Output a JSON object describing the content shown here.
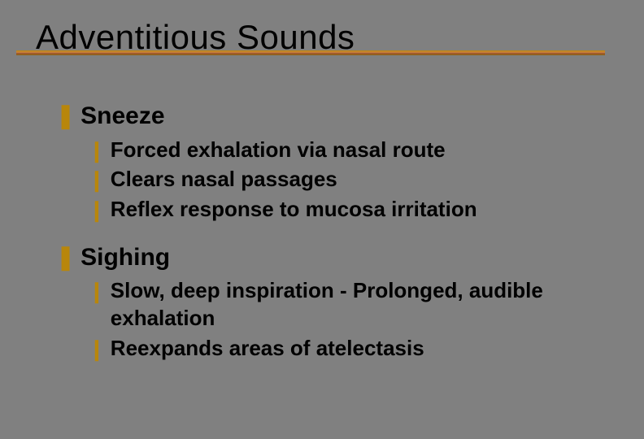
{
  "colors": {
    "background": "#808080",
    "bullet": "#b8860b",
    "text": "#000000",
    "underline_gradient": [
      "#b8860b",
      "#cd853f",
      "#a0522d",
      "#8b6914"
    ]
  },
  "typography": {
    "title_font": "Impact",
    "title_fontsize": 42,
    "body_font": "Arial",
    "level1_fontsize": 30,
    "level2_fontsize": 26,
    "body_weight": "bold"
  },
  "bullets": {
    "level1_glyph": "❚",
    "level2_glyph": "❙"
  },
  "title": "Adventitious Sounds",
  "sections": [
    {
      "heading": "Sneeze",
      "items": [
        "Forced exhalation via nasal route",
        "Clears nasal passages",
        "Reflex response to mucosa irritation"
      ]
    },
    {
      "heading": "Sighing",
      "items": [
        "Slow, deep inspiration - Prolonged, audible exhalation",
        "Reexpands areas of atelectasis"
      ]
    }
  ]
}
